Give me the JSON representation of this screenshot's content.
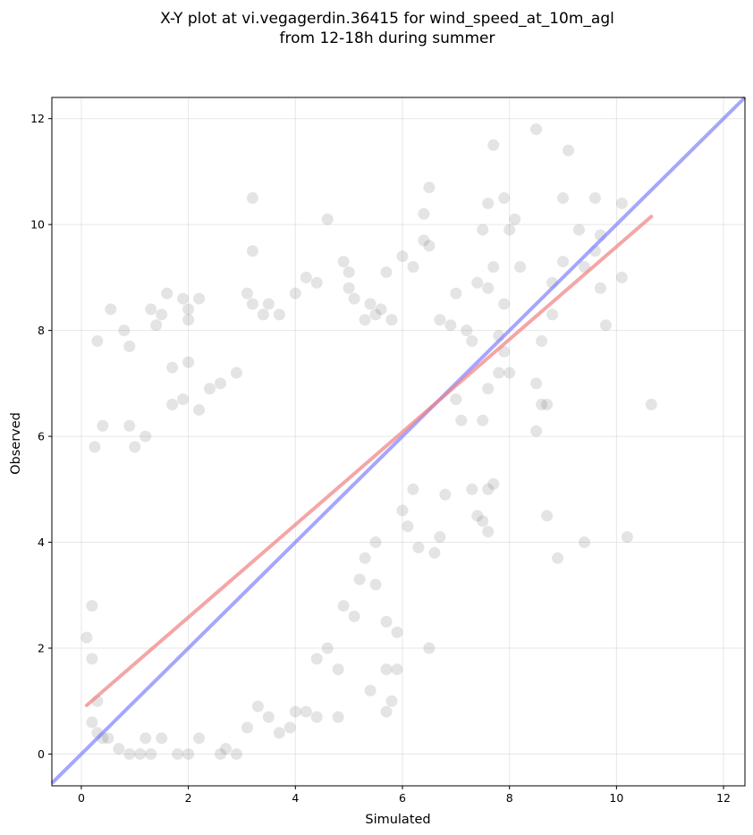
{
  "chart_data": {
    "type": "scatter",
    "title": [
      "X-Y plot at vi.vegagerdin.36415 for wind_speed_at_10m_agl",
      "from 12-18h during summer"
    ],
    "xlabel": "Simulated",
    "ylabel": "Observed",
    "xlim": [
      -0.55,
      12.4
    ],
    "ylim": [
      -0.6,
      12.4
    ],
    "xticks": [
      0,
      2,
      4,
      6,
      8,
      10,
      12
    ],
    "yticks": [
      0,
      2,
      4,
      6,
      8,
      10,
      12
    ],
    "grid": true,
    "point_color": "#555555",
    "identity_line": {
      "color": "#8080ff",
      "x": [
        -0.55,
        12.4
      ],
      "y": [
        -0.55,
        12.4
      ]
    },
    "regression_line": {
      "color": "#f08080",
      "x": [
        0.1,
        10.65
      ],
      "y": [
        0.92,
        10.15
      ]
    },
    "points": [
      [
        0.1,
        2.2
      ],
      [
        0.2,
        2.8
      ],
      [
        0.2,
        1.8
      ],
      [
        0.25,
        5.8
      ],
      [
        0.3,
        7.8
      ],
      [
        0.4,
        6.2
      ],
      [
        0.55,
        8.4
      ],
      [
        0.8,
        8.0
      ],
      [
        0.9,
        7.7
      ],
      [
        0.9,
        6.2
      ],
      [
        1.0,
        5.8
      ],
      [
        1.2,
        6.0
      ],
      [
        1.3,
        8.4
      ],
      [
        1.4,
        8.1
      ],
      [
        1.5,
        8.3
      ],
      [
        1.6,
        8.7
      ],
      [
        1.9,
        8.6
      ],
      [
        2.0,
        8.2
      ],
      [
        2.0,
        8.4
      ],
      [
        2.2,
        8.6
      ],
      [
        2.0,
        7.4
      ],
      [
        1.7,
        7.3
      ],
      [
        1.7,
        6.6
      ],
      [
        1.9,
        6.7
      ],
      [
        2.2,
        6.5
      ],
      [
        2.4,
        6.9
      ],
      [
        2.6,
        7.0
      ],
      [
        2.9,
        7.2
      ],
      [
        3.2,
        10.5
      ],
      [
        3.2,
        9.5
      ],
      [
        3.1,
        8.7
      ],
      [
        3.2,
        8.5
      ],
      [
        3.4,
        8.3
      ],
      [
        3.5,
        8.5
      ],
      [
        3.7,
        8.3
      ],
      [
        4.0,
        8.7
      ],
      [
        4.2,
        9.0
      ],
      [
        4.4,
        8.9
      ],
      [
        4.6,
        10.1
      ],
      [
        4.9,
        9.3
      ],
      [
        5.0,
        9.1
      ],
      [
        5.0,
        8.8
      ],
      [
        5.1,
        8.6
      ],
      [
        5.3,
        8.2
      ],
      [
        5.4,
        8.5
      ],
      [
        5.5,
        8.3
      ],
      [
        5.6,
        8.4
      ],
      [
        5.8,
        8.2
      ],
      [
        5.7,
        9.1
      ],
      [
        6.0,
        9.4
      ],
      [
        6.2,
        9.2
      ],
      [
        6.4,
        10.2
      ],
      [
        6.4,
        9.7
      ],
      [
        6.5,
        9.6
      ],
      [
        6.5,
        10.7
      ],
      [
        6.7,
        8.2
      ],
      [
        6.9,
        8.1
      ],
      [
        7.0,
        8.7
      ],
      [
        7.2,
        8.0
      ],
      [
        7.3,
        7.8
      ],
      [
        7.4,
        8.9
      ],
      [
        7.5,
        9.9
      ],
      [
        7.6,
        10.4
      ],
      [
        7.6,
        8.8
      ],
      [
        7.7,
        9.2
      ],
      [
        7.8,
        7.9
      ],
      [
        7.9,
        8.5
      ],
      [
        8.0,
        9.9
      ],
      [
        8.1,
        10.1
      ],
      [
        8.2,
        9.2
      ],
      [
        7.9,
        10.5
      ],
      [
        7.7,
        11.5
      ],
      [
        8.5,
        11.8
      ],
      [
        9.0,
        10.5
      ],
      [
        9.1,
        11.4
      ],
      [
        9.3,
        9.9
      ],
      [
        9.6,
        10.5
      ],
      [
        9.7,
        9.8
      ],
      [
        10.1,
        10.4
      ],
      [
        10.1,
        9.0
      ],
      [
        9.6,
        9.5
      ],
      [
        9.4,
        9.2
      ],
      [
        9.0,
        9.3
      ],
      [
        8.8,
        8.9
      ],
      [
        8.8,
        8.3
      ],
      [
        8.6,
        7.8
      ],
      [
        8.5,
        7.0
      ],
      [
        8.6,
        6.6
      ],
      [
        8.5,
        6.1
      ],
      [
        8.7,
        6.6
      ],
      [
        9.7,
        8.8
      ],
      [
        9.8,
        8.1
      ],
      [
        10.65,
        6.6
      ],
      [
        10.2,
        4.1
      ],
      [
        9.4,
        4.0
      ],
      [
        8.9,
        3.7
      ],
      [
        8.7,
        4.5
      ],
      [
        7.7,
        5.1
      ],
      [
        7.6,
        5.0
      ],
      [
        7.6,
        4.2
      ],
      [
        7.5,
        4.4
      ],
      [
        7.4,
        4.5
      ],
      [
        7.3,
        5.0
      ],
      [
        7.1,
        6.3
      ],
      [
        7.0,
        6.7
      ],
      [
        7.5,
        6.3
      ],
      [
        7.6,
        6.9
      ],
      [
        7.8,
        7.2
      ],
      [
        7.9,
        7.6
      ],
      [
        8.0,
        7.2
      ],
      [
        6.7,
        4.1
      ],
      [
        6.6,
        3.8
      ],
      [
        6.8,
        4.9
      ],
      [
        6.5,
        2.0
      ],
      [
        5.9,
        2.3
      ],
      [
        5.9,
        1.6
      ],
      [
        5.8,
        1.0
      ],
      [
        5.7,
        0.8
      ],
      [
        5.7,
        1.6
      ],
      [
        5.4,
        1.2
      ],
      [
        6.3,
        3.9
      ],
      [
        6.1,
        4.3
      ],
      [
        6.0,
        4.6
      ],
      [
        6.2,
        5.0
      ],
      [
        5.5,
        4.0
      ],
      [
        5.3,
        3.7
      ],
      [
        5.2,
        3.3
      ],
      [
        5.5,
        3.2
      ],
      [
        5.7,
        2.5
      ],
      [
        5.1,
        2.6
      ],
      [
        4.9,
        2.8
      ],
      [
        4.6,
        2.0
      ],
      [
        4.4,
        1.8
      ],
      [
        4.8,
        1.6
      ],
      [
        4.8,
        0.7
      ],
      [
        4.4,
        0.7
      ],
      [
        4.2,
        0.8
      ],
      [
        4.0,
        0.8
      ],
      [
        3.9,
        0.5
      ],
      [
        3.7,
        0.4
      ],
      [
        3.5,
        0.7
      ],
      [
        3.3,
        0.9
      ],
      [
        3.1,
        0.5
      ],
      [
        2.9,
        0.0
      ],
      [
        2.6,
        0.0
      ],
      [
        2.7,
        0.1
      ],
      [
        2.2,
        0.3
      ],
      [
        2.0,
        0.0
      ],
      [
        1.8,
        0.0
      ],
      [
        1.5,
        0.3
      ],
      [
        1.3,
        0.0
      ],
      [
        1.1,
        0.0
      ],
      [
        1.2,
        0.3
      ],
      [
        0.9,
        0.0
      ],
      [
        0.7,
        0.1
      ],
      [
        0.5,
        0.3
      ],
      [
        0.3,
        0.4
      ],
      [
        0.2,
        0.6
      ],
      [
        0.3,
        1.0
      ],
      [
        0.4,
        0.3
      ]
    ]
  }
}
